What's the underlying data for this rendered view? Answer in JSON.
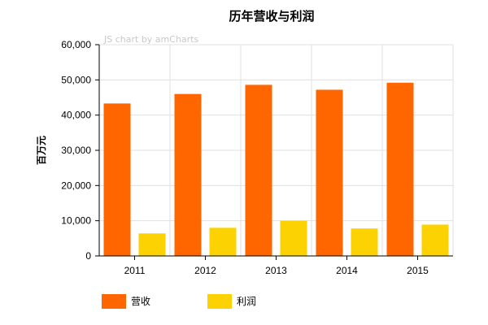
{
  "chart_data": {
    "type": "bar",
    "title": "历年营收与利润",
    "watermark": "JS chart by amCharts",
    "ylabel": "百万元",
    "xlabel": "",
    "ylim": [
      0,
      60000
    ],
    "yticks": [
      "0",
      "10,000",
      "20,000",
      "30,000",
      "40,000",
      "50,000",
      "60,000"
    ],
    "grid": true,
    "legend_position": "bottom-left",
    "categories": [
      "2011",
      "2012",
      "2013",
      "2014",
      "2015"
    ],
    "series": [
      {
        "name": "营收",
        "color": "#FF6600",
        "values": [
          43300,
          46000,
          48600,
          47200,
          49200
        ]
      },
      {
        "name": "利润",
        "color": "#FCD202",
        "values": [
          6400,
          8000,
          10000,
          7800,
          8900
        ]
      }
    ]
  }
}
